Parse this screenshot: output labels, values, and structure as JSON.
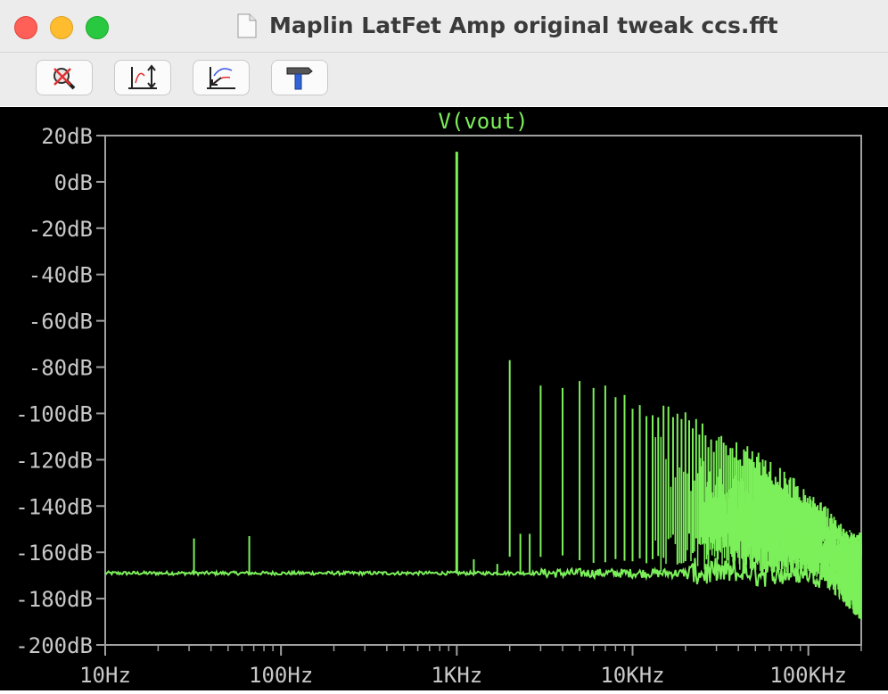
{
  "window": {
    "title": "Maplin LatFet Amp original tweak ccs.fft"
  },
  "toolbar": {
    "buttons": [
      {
        "icon": "zoom-cancel-icon"
      },
      {
        "icon": "autorange-y-icon"
      },
      {
        "icon": "autorange-x-icon"
      },
      {
        "icon": "hammer-icon"
      }
    ]
  },
  "colors": {
    "trace": "#7cf05a",
    "plot_bg": "#000000",
    "axis": "#a0a0a0",
    "label": "#c8c8c8"
  },
  "chart_data": {
    "type": "line",
    "title": "V(vout)",
    "x_scale": "log",
    "xlim": [
      10,
      200000
    ],
    "ylim": [
      -200,
      20
    ],
    "x_ticks": [
      {
        "value": 10,
        "label": "10Hz"
      },
      {
        "value": 100,
        "label": "100Hz"
      },
      {
        "value": 1000,
        "label": "1KHz"
      },
      {
        "value": 10000,
        "label": "10KHz"
      },
      {
        "value": 100000,
        "label": "100KHz"
      }
    ],
    "y_ticks": [
      {
        "value": 20,
        "label": "20dB"
      },
      {
        "value": 0,
        "label": "0dB"
      },
      {
        "value": -20,
        "label": "-20dB"
      },
      {
        "value": -40,
        "label": "-40dB"
      },
      {
        "value": -60,
        "label": "-60dB"
      },
      {
        "value": -80,
        "label": "-80dB"
      },
      {
        "value": -100,
        "label": "-100dB"
      },
      {
        "value": -120,
        "label": "-120dB"
      },
      {
        "value": -140,
        "label": "-140dB"
      },
      {
        "value": -160,
        "label": "-160dB"
      },
      {
        "value": -180,
        "label": "-180dB"
      },
      {
        "value": -200,
        "label": "-200dB"
      }
    ],
    "noise_floor_db": -169,
    "series": [
      {
        "name": "V(vout)",
        "peaks": [
          {
            "freq": 1000,
            "db": 13
          },
          {
            "freq": 2000,
            "db": -77
          },
          {
            "freq": 3000,
            "db": -88
          },
          {
            "freq": 4000,
            "db": -89
          },
          {
            "freq": 5000,
            "db": -86
          },
          {
            "freq": 6000,
            "db": -89
          },
          {
            "freq": 7000,
            "db": -88
          },
          {
            "freq": 8000,
            "db": -93
          },
          {
            "freq": 9000,
            "db": -92
          },
          {
            "freq": 10000,
            "db": -98
          },
          {
            "freq": 12000,
            "db": -98
          },
          {
            "freq": 14000,
            "db": -99
          },
          {
            "freq": 16000,
            "db": -102
          },
          {
            "freq": 18000,
            "db": -103
          },
          {
            "freq": 20000,
            "db": -104
          },
          {
            "freq": 30000,
            "db": -113
          },
          {
            "freq": 50000,
            "db": -120
          },
          {
            "freq": 80000,
            "db": -132
          },
          {
            "freq": 130000,
            "db": -146
          },
          {
            "freq": 200000,
            "db": -160
          }
        ],
        "spurs": [
          {
            "freq": 32,
            "db": -154
          },
          {
            "freq": 66,
            "db": -153
          },
          {
            "freq": 1250,
            "db": -163
          },
          {
            "freq": 1700,
            "db": -165
          },
          {
            "freq": 2300,
            "db": -152
          },
          {
            "freq": 2600,
            "db": -152
          }
        ]
      }
    ]
  }
}
